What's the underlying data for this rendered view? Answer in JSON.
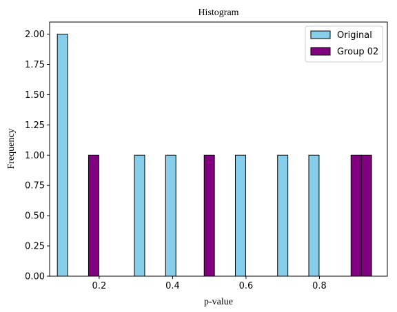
{
  "chart_data": {
    "type": "bar",
    "title": "Histogram",
    "xlabel": "p-value",
    "ylabel": "Frequency",
    "xlim": [
      0.065,
      0.985
    ],
    "ylim": [
      0,
      2.1
    ],
    "bin_width": 0.028,
    "x_ticks": [
      0.2,
      0.4,
      0.6,
      0.8
    ],
    "x_tick_labels": [
      "0.2",
      "0.4",
      "0.6",
      "0.8"
    ],
    "y_ticks": [
      0,
      0.25,
      0.5,
      0.75,
      1.0,
      1.25,
      1.5,
      1.75,
      2.0
    ],
    "y_tick_labels": [
      "0.00",
      "0.25",
      "0.50",
      "0.75",
      "1.00",
      "1.25",
      "1.50",
      "1.75",
      "2.00"
    ],
    "grid": false,
    "legend_position": "top-right",
    "series": [
      {
        "name": "Original",
        "color": "#87ceeb",
        "bars": [
          {
            "x": 0.1,
            "value": 2
          },
          {
            "x": 0.31,
            "value": 1
          },
          {
            "x": 0.395,
            "value": 1
          },
          {
            "x": 0.585,
            "value": 1
          },
          {
            "x": 0.7,
            "value": 1
          },
          {
            "x": 0.785,
            "value": 1
          }
        ]
      },
      {
        "name": "Group 02",
        "color": "#800080",
        "bars": [
          {
            "x": 0.185,
            "value": 1
          },
          {
            "x": 0.5,
            "value": 1
          },
          {
            "x": 0.9,
            "value": 1
          },
          {
            "x": 0.928,
            "value": 1
          }
        ]
      }
    ]
  }
}
